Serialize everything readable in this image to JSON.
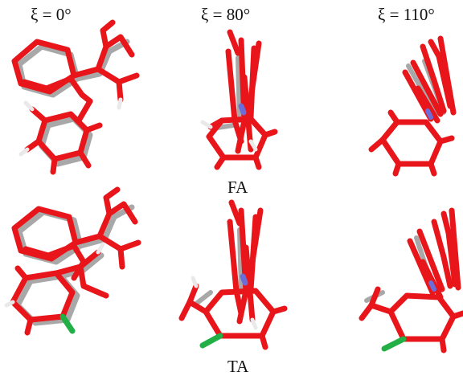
{
  "labels": {
    "xi_0": "ξ = 0°",
    "xi_80": "ξ = 80°",
    "xi_110": "ξ = 110°",
    "row1": "FA",
    "row2": "TA"
  },
  "colors": {
    "primary_conformer": "#e8161b",
    "overlay_conformer": "#a8a8a8",
    "hydrogen": "#e9e9e9",
    "nitrogen": "#6d6dd8",
    "chlorine": "#22b046"
  }
}
